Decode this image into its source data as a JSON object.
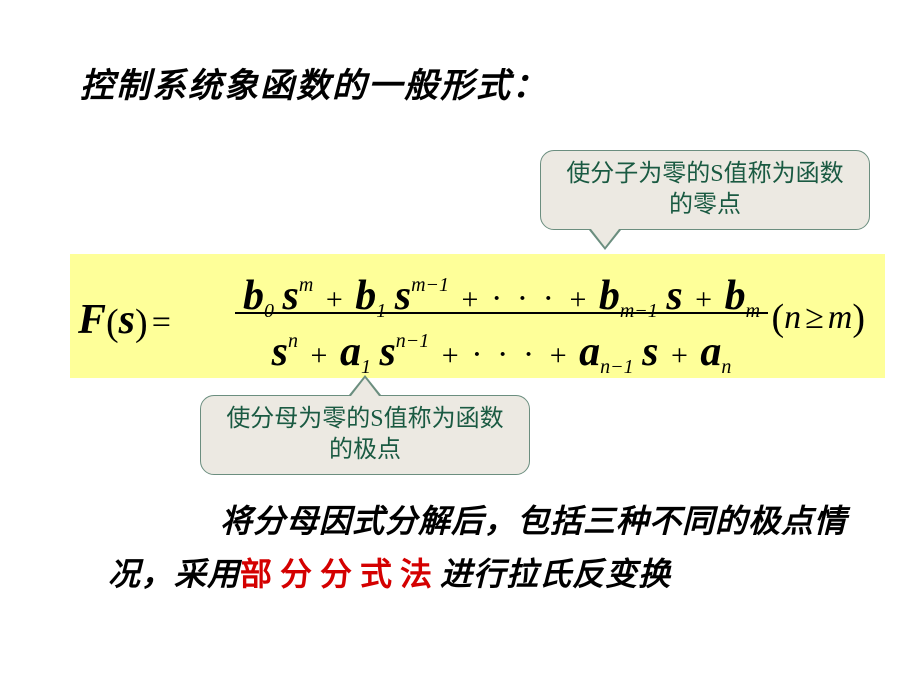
{
  "title": "控制系统象函数的一般形式：",
  "callout_top": "使分子为零的S值称为函数的零点",
  "callout_bottom": "使分母为零的S值称为函数的极点",
  "formula": {
    "lhs_F": "F",
    "lhs_var": "s",
    "num_b0": "b",
    "num_b0_sub": "0",
    "num_s1": "s",
    "num_s1_sup": "m",
    "num_b1": "b",
    "num_b1_sub": "1",
    "num_s2": "s",
    "num_s2_sup": "m−1",
    "num_dots": "· · ·",
    "num_bm1": "b",
    "num_bm1_sub": "m−1",
    "num_s3": "s",
    "num_bm": "b",
    "num_bm_sub": "m",
    "den_s1": "s",
    "den_s1_sup": "n",
    "den_a1": "a",
    "den_a1_sub": "1",
    "den_s2": "s",
    "den_s2_sup": "n−1",
    "den_dots": "· · ·",
    "den_an1": "a",
    "den_an1_sub": "n−1",
    "den_s3": "s",
    "den_an": "a",
    "den_an_sub": "n",
    "cond_n": "n",
    "cond_ge": "≥",
    "cond_m": "m"
  },
  "para_pre": "将分母因式分解后，包括三种不同的极点情况，采用",
  "para_red": "部分分式法",
  "para_post": "进行拉氏反变换",
  "colors": {
    "formula_bg": "#feff99",
    "callout_bg": "#ece9e2",
    "callout_border": "#6b8e7f",
    "callout_text": "#1a5a42",
    "red": "#d40000"
  }
}
